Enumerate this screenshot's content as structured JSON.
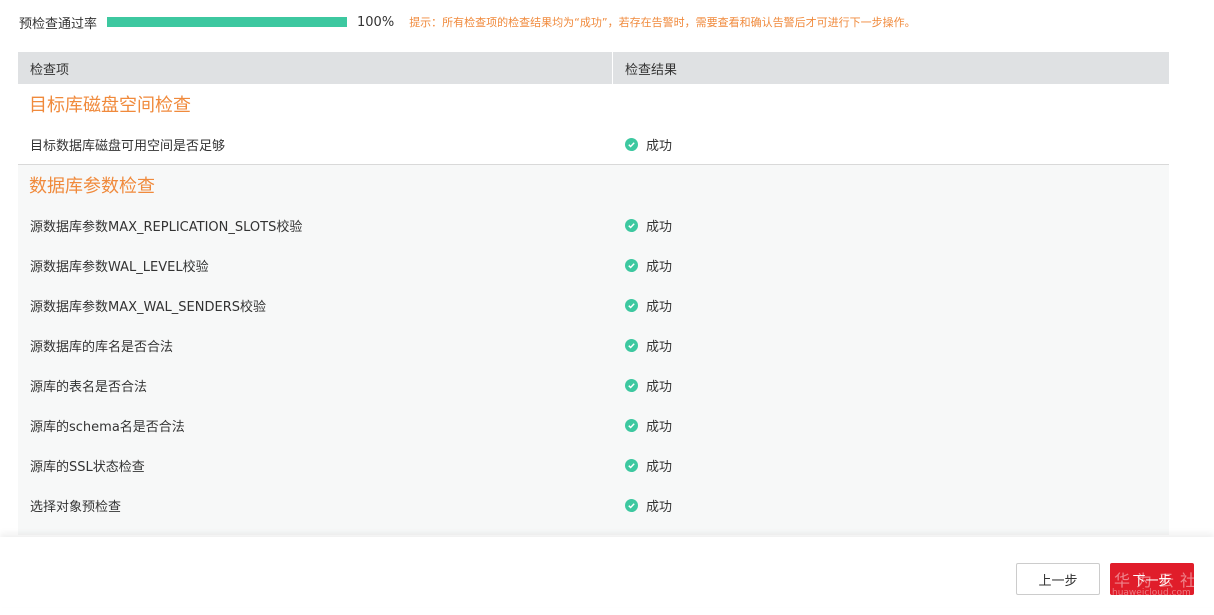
{
  "progress": {
    "label": "预检查通过率",
    "value_percent": 100,
    "value_text": "100%",
    "tip": "提示：所有检查项的检查结果均为“成功”，若存在告警时，需要查看和确认告警后才可进行下一步操作。",
    "color": "#3dc8a0"
  },
  "table": {
    "headers": [
      "检查项",
      "检查结果"
    ],
    "sections": [
      {
        "title": "目标库磁盘空间检查",
        "rows": [
          {
            "item": "目标数据库磁盘可用空间是否足够",
            "result": "成功"
          }
        ]
      },
      {
        "title": "数据库参数检查",
        "rows": [
          {
            "item": "源数据库参数MAX_REPLICATION_SLOTS校验",
            "result": "成功"
          },
          {
            "item": "源数据库参数WAL_LEVEL校验",
            "result": "成功"
          },
          {
            "item": "源数据库参数MAX_WAL_SENDERS校验",
            "result": "成功"
          },
          {
            "item": "源数据库的库名是否合法",
            "result": "成功"
          },
          {
            "item": "源库的表名是否合法",
            "result": "成功"
          },
          {
            "item": "源库的schema名是否合法",
            "result": "成功"
          },
          {
            "item": "源库的SSL状态检查",
            "result": "成功"
          },
          {
            "item": "选择对象预检查",
            "result": "成功"
          }
        ]
      }
    ]
  },
  "footer": {
    "prev": "上一步",
    "next": "下一步"
  },
  "watermark": {
    "text": "华为云社区",
    "url": "huaweicloud.com"
  }
}
